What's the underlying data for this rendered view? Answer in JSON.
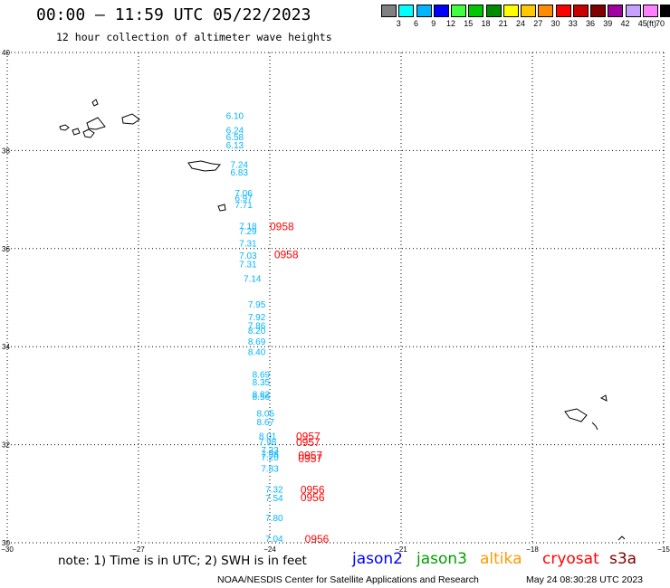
{
  "title": "00:00 – 11:59 UTC 05/22/2023",
  "subtitle": "12 hour collection of altimeter wave heights",
  "colorbar": {
    "labels": [
      "3",
      "6",
      "9",
      "12",
      "15",
      "18",
      "21",
      "24",
      "27",
      "30",
      "33",
      "36",
      "39",
      "42",
      "45",
      "70"
    ],
    "colors": [
      "#808080",
      "#00ffff",
      "#00b4ff",
      "#0000ff",
      "#40ff40",
      "#00c800",
      "#008c00",
      "#ffff00",
      "#ffc800",
      "#ff8c00",
      "#ff0000",
      "#c80000",
      "#800000",
      "#a000a0",
      "#c8a0ff",
      "#ff80ff",
      "#000000"
    ],
    "unit": "(ft)"
  },
  "map": {
    "lat_range": [
      30,
      40
    ],
    "lon_range": [
      -30,
      -15
    ],
    "lat_ticks": [
      30,
      32,
      34,
      36,
      38,
      40
    ],
    "lon_ticks": [
      -30,
      -27,
      -24,
      -21,
      -18,
      -15
    ],
    "lat_tick_labels": [
      "30",
      "32",
      "34",
      "36",
      "38",
      "40"
    ],
    "lon_tick_labels": [
      "−30",
      "−27",
      "−24",
      "−21",
      "−18",
      "−15"
    ],
    "grid": true,
    "wave_height_color": "#00b4ff",
    "time_label_color": "#ff0000",
    "wave_heights": [
      {
        "lat": 38.7,
        "lon": -25.0,
        "value": "6.10"
      },
      {
        "lat": 38.4,
        "lon": -25.0,
        "value": "6.24"
      },
      {
        "lat": 38.27,
        "lon": -25.0,
        "value": "6.58"
      },
      {
        "lat": 38.1,
        "lon": -25.0,
        "value": "6.13"
      },
      {
        "lat": 37.7,
        "lon": -24.9,
        "value": "7.24"
      },
      {
        "lat": 37.55,
        "lon": -24.9,
        "value": "6.83"
      },
      {
        "lat": 37.12,
        "lon": -24.8,
        "value": "7.06"
      },
      {
        "lat": 37.02,
        "lon": -24.8,
        "value": "6.97"
      },
      {
        "lat": 36.88,
        "lon": -24.8,
        "value": "7.71"
      },
      {
        "lat": 36.45,
        "lon": -24.7,
        "value": "7.18"
      },
      {
        "lat": 36.35,
        "lon": -24.7,
        "value": "7.29"
      },
      {
        "lat": 36.1,
        "lon": -24.7,
        "value": "7.31"
      },
      {
        "lat": 35.85,
        "lon": -24.7,
        "value": "7.03"
      },
      {
        "lat": 35.67,
        "lon": -24.7,
        "value": "7.31"
      },
      {
        "lat": 35.38,
        "lon": -24.6,
        "value": "7.14"
      },
      {
        "lat": 34.85,
        "lon": -24.5,
        "value": "7.95"
      },
      {
        "lat": 34.59,
        "lon": -24.5,
        "value": "7.92"
      },
      {
        "lat": 34.42,
        "lon": -24.5,
        "value": "7.86"
      },
      {
        "lat": 34.32,
        "lon": -24.5,
        "value": "8.20"
      },
      {
        "lat": 34.1,
        "lon": -24.5,
        "value": "8.69"
      },
      {
        "lat": 33.88,
        "lon": -24.5,
        "value": "8.40"
      },
      {
        "lat": 33.42,
        "lon": -24.4,
        "value": "8.69"
      },
      {
        "lat": 33.27,
        "lon": -24.4,
        "value": "8.35"
      },
      {
        "lat": 33.02,
        "lon": -24.4,
        "value": "8.82"
      },
      {
        "lat": 32.97,
        "lon": -24.4,
        "value": "8.56"
      },
      {
        "lat": 32.63,
        "lon": -24.3,
        "value": "8.05"
      },
      {
        "lat": 32.45,
        "lon": -24.3,
        "value": "8.67"
      },
      {
        "lat": 32.17,
        "lon": -24.25,
        "value": "8.01"
      },
      {
        "lat": 32.05,
        "lon": -24.25,
        "value": "7.98"
      },
      {
        "lat": 31.88,
        "lon": -24.2,
        "value": "7.33"
      },
      {
        "lat": 31.8,
        "lon": -24.2,
        "value": "7.96"
      },
      {
        "lat": 31.73,
        "lon": -24.2,
        "value": "7.20"
      },
      {
        "lat": 31.5,
        "lon": -24.2,
        "value": "7.83"
      },
      {
        "lat": 31.08,
        "lon": -24.1,
        "value": "7.32"
      },
      {
        "lat": 30.9,
        "lon": -24.1,
        "value": "7.54"
      },
      {
        "lat": 30.5,
        "lon": -24.1,
        "value": "7.80"
      },
      {
        "lat": 30.07,
        "lon": -24.1,
        "value": "7.04"
      }
    ],
    "time_labels": [
      {
        "lat": 36.45,
        "lon": -24.0,
        "value": "0958"
      },
      {
        "lat": 35.88,
        "lon": -23.9,
        "value": "0958"
      },
      {
        "lat": 32.17,
        "lon": -23.4,
        "value": "0957"
      },
      {
        "lat": 32.05,
        "lon": -23.4,
        "value": "0957"
      },
      {
        "lat": 31.78,
        "lon": -23.35,
        "value": "0957"
      },
      {
        "lat": 31.72,
        "lon": -23.35,
        "value": "0957"
      },
      {
        "lat": 31.08,
        "lon": -23.3,
        "value": "0956"
      },
      {
        "lat": 30.92,
        "lon": -23.3,
        "value": "0956"
      },
      {
        "lat": 30.07,
        "lon": -23.2,
        "value": "0956"
      }
    ]
  },
  "note": "note: 1) Time is in UTC; 2) SWH is in feet",
  "legend": [
    {
      "name": "jason2",
      "color": "#0000ff"
    },
    {
      "name": "jason3",
      "color": "#00a000"
    },
    {
      "name": "altika",
      "color": "#ff9900"
    },
    {
      "name": "cryosat",
      "color": "#ff0000"
    },
    {
      "name": "s3a",
      "color": "#800000"
    }
  ],
  "footer": {
    "center": "NOAA/NESDIS Center for Satellite Applications and Research",
    "stamp": "May 24 08:30:28 UTC 2023"
  }
}
